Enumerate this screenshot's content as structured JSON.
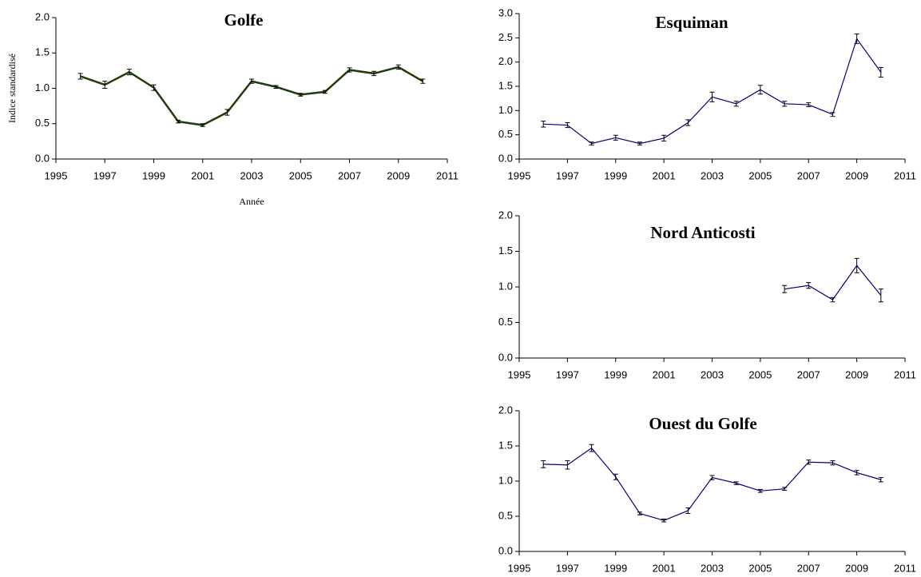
{
  "chart_data": [
    {
      "type": "line",
      "title": "Golfe",
      "xlabel": "Année",
      "ylabel": "Indice standardisé",
      "x": [
        1996,
        1997,
        1998,
        1999,
        2000,
        2001,
        2002,
        2003,
        2004,
        2005,
        2006,
        2007,
        2008,
        2009,
        2010
      ],
      "series": [
        {
          "color": "#1e3d0a",
          "values": [
            1.17,
            1.05,
            1.23,
            1.01,
            0.53,
            0.48,
            0.66,
            1.1,
            1.02,
            0.91,
            0.95,
            1.26,
            1.21,
            1.3,
            1.1
          ],
          "errors": [
            0.04,
            0.05,
            0.04,
            0.04,
            0.02,
            0.02,
            0.04,
            0.03,
            0.02,
            0.02,
            0.02,
            0.03,
            0.03,
            0.03,
            0.03
          ]
        }
      ],
      "xlim": [
        1995,
        2011
      ],
      "xticks": [
        1995,
        1997,
        1999,
        2001,
        2003,
        2005,
        2007,
        2009,
        2011
      ],
      "ylim": [
        0,
        2
      ],
      "yticks": [
        {
          "value": 0,
          "label": "0.0"
        },
        {
          "value": 0.5,
          "label": "0.5"
        },
        {
          "value": 1,
          "label": "1.0"
        },
        {
          "value": 1.5,
          "label": "1.5"
        },
        {
          "value": 2,
          "label": "2.0"
        }
      ]
    },
    {
      "type": "line",
      "title": "Esquiman",
      "x": [
        1996,
        1997,
        1998,
        1999,
        2000,
        2001,
        2002,
        2003,
        2004,
        2005,
        2006,
        2007,
        2008,
        2009,
        2010
      ],
      "series": [
        {
          "color": "#000080",
          "values": [
            0.72,
            0.7,
            0.32,
            0.44,
            0.32,
            0.43,
            0.75,
            1.28,
            1.14,
            1.43,
            1.14,
            1.12,
            0.92,
            2.48,
            1.79
          ],
          "errors": [
            0.06,
            0.05,
            0.03,
            0.05,
            0.03,
            0.06,
            0.06,
            0.1,
            0.05,
            0.09,
            0.05,
            0.04,
            0.04,
            0.1,
            0.1
          ]
        }
      ],
      "xlim": [
        1995,
        2011
      ],
      "xticks": [
        1995,
        1997,
        1999,
        2001,
        2003,
        2005,
        2007,
        2009,
        2011
      ],
      "ylim": [
        0,
        3
      ],
      "yticks": [
        {
          "value": 0,
          "label": "0.0"
        },
        {
          "value": 0.5,
          "label": "0.5"
        },
        {
          "value": 1,
          "label": "1.0"
        },
        {
          "value": 1.5,
          "label": "1.5"
        },
        {
          "value": 2,
          "label": "2.0"
        },
        {
          "value": 2.5,
          "label": "2.5"
        },
        {
          "value": 3,
          "label": "3.0"
        }
      ]
    },
    {
      "type": "line",
      "title": "Nord Anticosti",
      "x": [
        2006,
        2007,
        2008,
        2009,
        2010
      ],
      "series": [
        {
          "color": "#000080",
          "values": [
            0.97,
            1.02,
            0.82,
            1.3,
            0.88
          ],
          "errors": [
            0.05,
            0.04,
            0.03,
            0.1,
            0.09
          ]
        }
      ],
      "xlim": [
        1995,
        2011
      ],
      "xticks": [
        1995,
        1997,
        1999,
        2001,
        2003,
        2005,
        2007,
        2009,
        2011
      ],
      "ylim": [
        0,
        2
      ],
      "yticks": [
        {
          "value": 0,
          "label": "0.0"
        },
        {
          "value": 0.5,
          "label": "0.5"
        },
        {
          "value": 1,
          "label": "1.0"
        },
        {
          "value": 1.5,
          "label": "1.5"
        },
        {
          "value": 2,
          "label": "2.0"
        }
      ]
    },
    {
      "type": "line",
      "title": "Ouest du Golfe",
      "x": [
        1996,
        1997,
        1998,
        1999,
        2000,
        2001,
        2002,
        2003,
        2004,
        2005,
        2006,
        2007,
        2008,
        2009,
        2010
      ],
      "series": [
        {
          "color": "#000080",
          "values": [
            1.24,
            1.23,
            1.47,
            1.06,
            0.54,
            0.44,
            0.58,
            1.05,
            0.97,
            0.86,
            0.89,
            1.27,
            1.26,
            1.12,
            1.02
          ],
          "errors": [
            0.05,
            0.06,
            0.05,
            0.04,
            0.02,
            0.02,
            0.04,
            0.03,
            0.02,
            0.02,
            0.02,
            0.03,
            0.03,
            0.03,
            0.03
          ]
        }
      ],
      "xlim": [
        1995,
        2011
      ],
      "xticks": [
        1995,
        1997,
        1999,
        2001,
        2003,
        2005,
        2007,
        2009,
        2011
      ],
      "ylim": [
        0,
        2
      ],
      "yticks": [
        {
          "value": 0,
          "label": "0.0"
        },
        {
          "value": 0.5,
          "label": "0.5"
        },
        {
          "value": 1,
          "label": "1.0"
        },
        {
          "value": 1.5,
          "label": "1.5"
        },
        {
          "value": 2,
          "label": "2.0"
        }
      ]
    }
  ]
}
